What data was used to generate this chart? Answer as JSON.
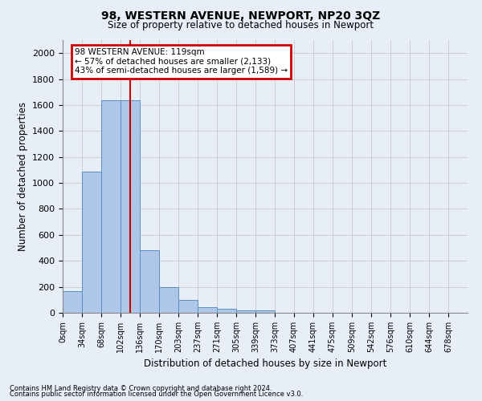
{
  "title": "98, WESTERN AVENUE, NEWPORT, NP20 3QZ",
  "subtitle": "Size of property relative to detached houses in Newport",
  "xlabel": "Distribution of detached houses by size in Newport",
  "ylabel": "Number of detached properties",
  "footnote1": "Contains HM Land Registry data © Crown copyright and database right 2024.",
  "footnote2": "Contains public sector information licensed under the Open Government Licence v3.0.",
  "bin_labels": [
    "0sqm",
    "34sqm",
    "68sqm",
    "102sqm",
    "136sqm",
    "170sqm",
    "203sqm",
    "237sqm",
    "271sqm",
    "305sqm",
    "339sqm",
    "373sqm",
    "407sqm",
    "441sqm",
    "475sqm",
    "509sqm",
    "542sqm",
    "576sqm",
    "610sqm",
    "644sqm",
    "678sqm"
  ],
  "bar_heights": [
    165,
    1090,
    1635,
    1635,
    480,
    200,
    100,
    45,
    30,
    20,
    20,
    0,
    0,
    0,
    0,
    0,
    0,
    0,
    0,
    0,
    0
  ],
  "bar_color": "#aec6e8",
  "bar_edge_color": "#5a8fc2",
  "vline_x": 3.5,
  "vline_color": "#cc0000",
  "annotation_text": "98 WESTERN AVENUE: 119sqm\n← 57% of detached houses are smaller (2,133)\n43% of semi-detached houses are larger (1,589) →",
  "annotation_box_color": "#cc0000",
  "ylim": [
    0,
    2100
  ],
  "yticks": [
    0,
    200,
    400,
    600,
    800,
    1000,
    1200,
    1400,
    1600,
    1800,
    2000
  ],
  "grid_color": "#c8c8c8",
  "background_color": "#e8eef8",
  "figsize": [
    6.0,
    5.0
  ],
  "dpi": 100
}
